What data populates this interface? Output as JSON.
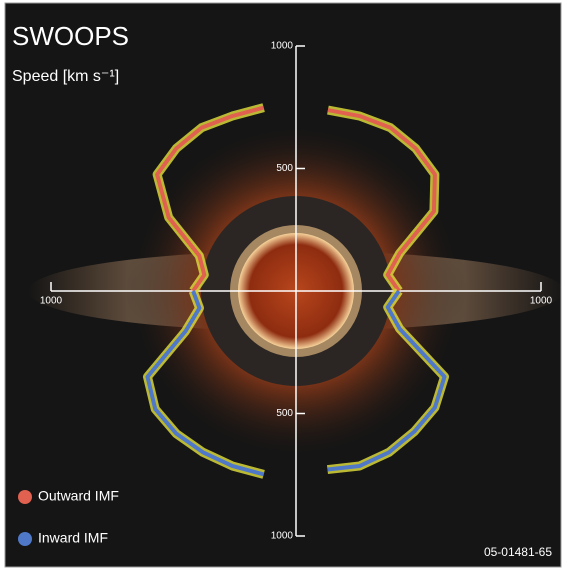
{
  "chart_data": {
    "type": "polar",
    "title": "SWOOPS",
    "axis_label": "Speed [km s⁻¹]",
    "rlim": [
      0,
      1000
    ],
    "rticks": [
      500,
      1000
    ],
    "series": [
      {
        "name": "Outward IMF",
        "color": "#e0614f",
        "x": [
          0,
          10,
          20,
          30,
          40,
          50,
          60,
          70,
          80,
          90,
          100,
          110,
          120,
          130,
          140,
          150,
          160,
          170,
          180
        ],
        "values": [
          420,
          380,
          450,
          650,
          740,
          760,
          770,
          760,
          750,
          null,
          760,
          760,
          770,
          760,
          740,
          600,
          420,
          380,
          420
        ]
      },
      {
        "name": "Inward IMF",
        "color": "#4f78c8",
        "x": [
          180,
          190,
          200,
          210,
          220,
          230,
          240,
          250,
          260,
          270,
          280,
          290,
          300,
          310,
          320,
          330,
          340,
          350,
          360
        ],
        "values": [
          420,
          400,
          480,
          700,
          750,
          760,
          760,
          760,
          760,
          null,
          740,
          760,
          760,
          750,
          740,
          700,
          450,
          380,
          420
        ]
      }
    ],
    "figure_id": "05-01481-65"
  }
}
